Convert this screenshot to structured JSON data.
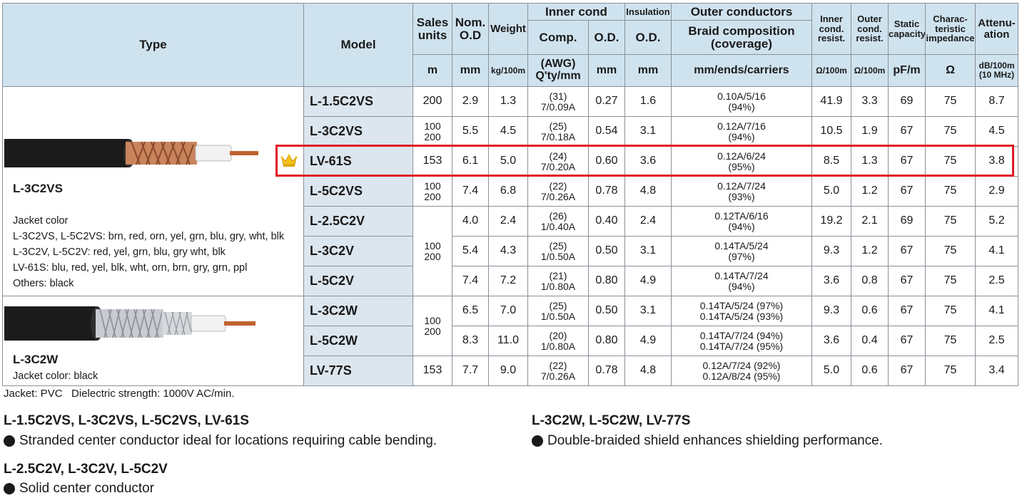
{
  "table": {
    "headers": {
      "type": "Type",
      "model": "Model",
      "sales_units": [
        "Sales",
        "units"
      ],
      "nom_od": [
        "Nom.",
        "O.D"
      ],
      "weight": "Weight",
      "inner_cond": "Inner cond",
      "insulation": "Insulation",
      "outer_conductors": "Outer conductors",
      "inner_cond_resist": [
        "Inner",
        "cond.",
        "resist."
      ],
      "outer_cond_resist": [
        "Outer",
        "cond.",
        "resist."
      ],
      "static_capacity": [
        "Static",
        "capacity"
      ],
      "char_impedance": [
        "Charac-",
        "teristic",
        "impedance"
      ],
      "attenuation": [
        "Attenu-",
        "ation"
      ],
      "comp": "Comp.",
      "inner_od": "O.D.",
      "ins_od": "O.D.",
      "braid": [
        "Braid composition",
        "(coverage)"
      ]
    },
    "units": {
      "sales_units": "m",
      "nom_od": "mm",
      "weight": "kg/100m",
      "comp": [
        "(AWG)",
        "Q'ty/mm"
      ],
      "inner_od": "mm",
      "ins_od": "mm",
      "braid": "mm/ends/carriers",
      "inner_resist": "Ω/100m",
      "outer_resist": "Ω/100m",
      "capacity": "pF/m",
      "impedance": "Ω",
      "attenuation": [
        "dB/100m",
        "(10 MHz)"
      ]
    },
    "rows": [
      {
        "model": "L-1.5C2VS",
        "units": [
          "200"
        ],
        "od": "2.9",
        "weight": "1.3",
        "comp": [
          "(31)",
          "7/0.09A"
        ],
        "inner_od": "0.27",
        "ins_od": "1.6",
        "braid": [
          "0.10A/5/16",
          "(94%)"
        ],
        "inner_r": "41.9",
        "outer_r": "3.3",
        "cap": "69",
        "imp": "75",
        "att": "8.7"
      },
      {
        "model": "L-3C2VS",
        "units": [
          "100",
          "200"
        ],
        "od": "5.5",
        "weight": "4.5",
        "comp": [
          "(25)",
          "7/0.18A"
        ],
        "inner_od": "0.54",
        "ins_od": "3.1",
        "braid": [
          "0.12A/7/16",
          "(94%)"
        ],
        "inner_r": "10.5",
        "outer_r": "1.9",
        "cap": "67",
        "imp": "75",
        "att": "4.5"
      },
      {
        "model": "LV-61S",
        "units": [
          "153"
        ],
        "od": "6.1",
        "weight": "5.0",
        "comp": [
          "(24)",
          "7/0.20A"
        ],
        "inner_od": "0.60",
        "ins_od": "3.6",
        "braid": [
          "0.12A/6/24",
          "(95%)"
        ],
        "inner_r": "8.5",
        "outer_r": "1.3",
        "cap": "67",
        "imp": "75",
        "att": "3.8"
      },
      {
        "model": "L-5C2VS",
        "units": [
          "100",
          "200"
        ],
        "od": "7.4",
        "weight": "6.8",
        "comp": [
          "(22)",
          "7/0.26A"
        ],
        "inner_od": "0.78",
        "ins_od": "4.8",
        "braid": [
          "0.12A/7/24",
          "(93%)"
        ],
        "inner_r": "5.0",
        "outer_r": "1.2",
        "cap": "67",
        "imp": "75",
        "att": "2.9"
      },
      {
        "model": "L-2.5C2V",
        "units": [
          "100",
          "200"
        ],
        "od": "4.0",
        "weight": "2.4",
        "comp": [
          "(26)",
          "1/0.40A"
        ],
        "inner_od": "0.40",
        "ins_od": "2.4",
        "braid": [
          "0.12TA/6/16",
          "(94%)"
        ],
        "inner_r": "19.2",
        "outer_r": "2.1",
        "cap": "69",
        "imp": "75",
        "att": "5.2"
      },
      {
        "model": "L-3C2V",
        "units": [],
        "od": "5.4",
        "weight": "4.3",
        "comp": [
          "(25)",
          "1/0.50A"
        ],
        "inner_od": "0.50",
        "ins_od": "3.1",
        "braid": [
          "0.14TA/5/24",
          "(97%)"
        ],
        "inner_r": "9.3",
        "outer_r": "1.2",
        "cap": "67",
        "imp": "75",
        "att": "4.1"
      },
      {
        "model": "L-5C2V",
        "units": [],
        "od": "7.4",
        "weight": "7.2",
        "comp": [
          "(21)",
          "1/0.80A"
        ],
        "inner_od": "0.80",
        "ins_od": "4.9",
        "braid": [
          "0.14TA/7/24",
          "(94%)"
        ],
        "inner_r": "3.6",
        "outer_r": "0.8",
        "cap": "67",
        "imp": "75",
        "att": "2.5"
      },
      {
        "model": "L-3C2W",
        "units": [
          "100",
          "200"
        ],
        "od": "6.5",
        "weight": "7.0",
        "comp": [
          "(25)",
          "1/0.50A"
        ],
        "inner_od": "0.50",
        "ins_od": "3.1",
        "braid": [
          "0.14TA/5/24 (97%)",
          "0.14TA/5/24 (93%)"
        ],
        "inner_r": "9.3",
        "outer_r": "0.6",
        "cap": "67",
        "imp": "75",
        "att": "4.1"
      },
      {
        "model": "L-5C2W",
        "units": [],
        "od": "8.3",
        "weight": "11.0",
        "comp": [
          "(20)",
          "1/0.80A"
        ],
        "inner_od": "0.80",
        "ins_od": "4.9",
        "braid": [
          "0.14TA/7/24 (94%)",
          "0.14TA/7/24 (95%)"
        ],
        "inner_r": "3.6",
        "outer_r": "0.4",
        "cap": "67",
        "imp": "75",
        "att": "2.5"
      },
      {
        "model": "LV-77S",
        "units": [
          "153"
        ],
        "od": "7.7",
        "weight": "9.0",
        "comp": [
          "(22)",
          "7/0.26A"
        ],
        "inner_od": "0.78",
        "ins_od": "4.8",
        "braid": [
          "0.12A/7/24 (92%)",
          "0.12A/8/24 (95%)"
        ],
        "inner_r": "5.0",
        "outer_r": "0.6",
        "cap": "67",
        "imp": "75",
        "att": "3.4"
      }
    ],
    "type_groups": [
      {
        "name": "L-3C2VS",
        "jacket_lines": [
          "Jacket color",
          "L-3C2VS, L-5C2VS: brn, red, orn, yel, grn, blu, gry, wht, blk",
          "L-3C2V, L-5C2V: red, yel, grn, blu, gry wht, blk",
          "LV-61S: blu, red, yel, blk, wht, orn, brn, gry, grn, ppl",
          "Others: black"
        ],
        "cable_colors": {
          "jacket": "#1b1b1b",
          "braid": "#c9845c",
          "insulation": "#f2f2f2",
          "conductor": "#c0622f"
        }
      },
      {
        "name": "L-3C2W",
        "jacket_lines": [
          "Jacket color: black"
        ],
        "cable_colors": {
          "jacket": "#1b1b1b",
          "braid": "#c8cbd0",
          "insulation": "#f2f2f2",
          "conductor": "#c0622f"
        }
      }
    ],
    "highlight_model": "LV-61S",
    "highlight_color": "#e01b24",
    "highlight_icon": "crown-icon",
    "header_bg": "#cfe3ef",
    "model_bg": "#dce6ee"
  },
  "footer": {
    "note": "Jacket: PVC   Dielectric strength: 1000V AC/min.",
    "features": [
      {
        "heading": "L-1.5C2VS, L-3C2VS, L-5C2VS, LV-61S",
        "text": "Stranded center conductor ideal for locations requiring cable bending."
      },
      {
        "heading": "L-2.5C2V, L-3C2V, L-5C2V",
        "text": "Solid center conductor"
      },
      {
        "heading": "L-3C2W, L-5C2W, LV-77S",
        "text": "Double-braided shield enhances shielding performance."
      }
    ]
  }
}
